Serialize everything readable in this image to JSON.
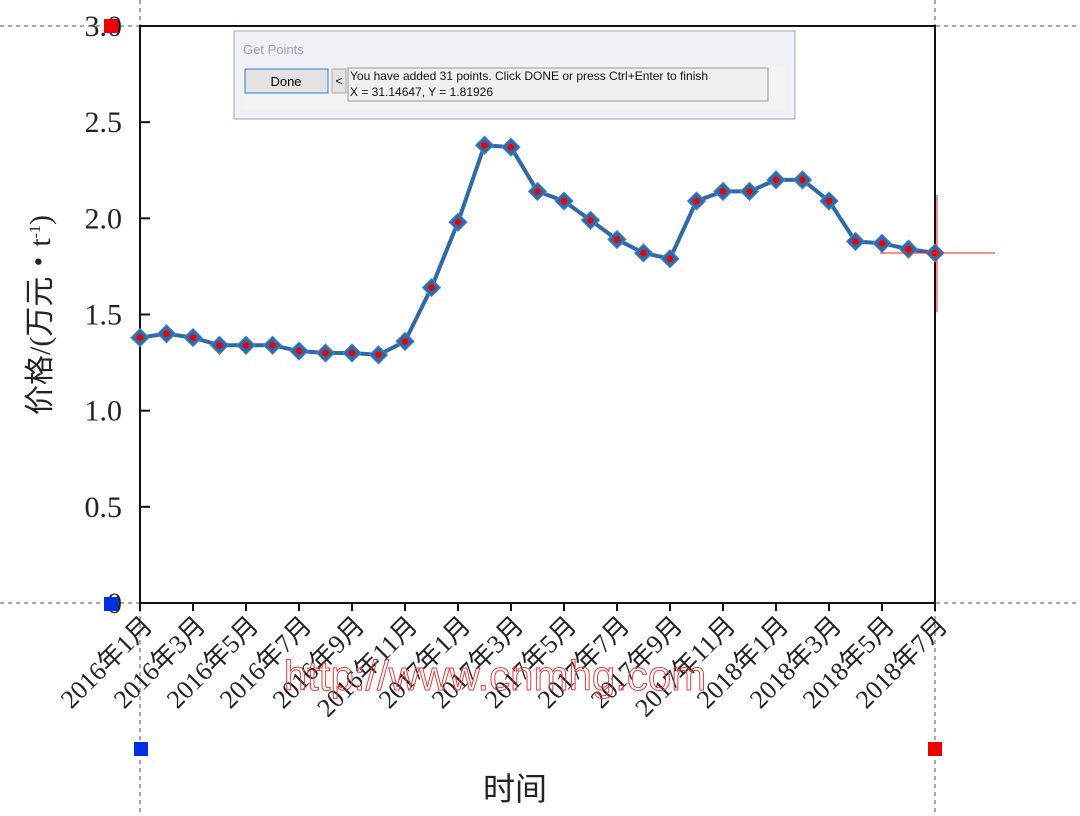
{
  "chart_data": {
    "type": "line",
    "y_label": {
      "main": "价格/(万元・t",
      "sup": "-1",
      "end": ")"
    },
    "x_label": "时间",
    "watermark": "http://www.cnmhg.com",
    "categories": [
      "2016年1月",
      null,
      "2016年3月",
      null,
      "2016年5月",
      null,
      "2016年7月",
      null,
      "2016年9月",
      null,
      "2016年11月",
      null,
      "2017年1月",
      null,
      "2017年3月",
      null,
      "2017年5月",
      null,
      "2017年7月",
      null,
      "2017年9月",
      null,
      "2017年11月",
      null,
      "2018年1月",
      null,
      "2018年3月",
      null,
      "2018年5月",
      null,
      "2018年7月"
    ],
    "series": [
      {
        "color": "#2f69a6",
        "values": [
          1.38,
          1.4,
          1.38,
          1.34,
          1.34,
          1.34,
          1.31,
          1.3,
          1.3,
          1.29,
          1.36,
          1.64,
          1.98,
          2.38,
          2.37,
          2.14,
          2.09,
          1.99,
          1.89,
          1.82,
          1.79,
          2.09,
          2.14,
          2.14,
          2.2,
          2.2,
          2.09,
          1.88,
          1.87,
          1.84,
          1.82
        ]
      }
    ],
    "ylim": [
      0,
      3
    ],
    "yticks": [
      0,
      0.5,
      {
        "value": 1,
        "label": "1.0"
      },
      1.5,
      {
        "value": 2,
        "label": "2.0"
      },
      2.5,
      {
        "value": 3,
        "label": "3.0"
      }
    ]
  },
  "dialog": {
    "title": "Get Points",
    "button": "Done",
    "arrow": "<",
    "message": "You have added 31 points. Click DONE or press Ctrl+Enter to finish",
    "coords": "X = 31.14647, Y = 1.81926"
  }
}
